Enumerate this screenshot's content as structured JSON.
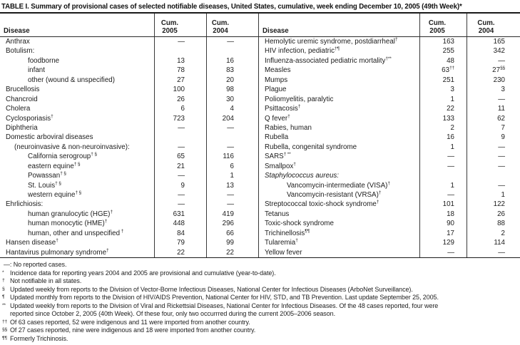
{
  "title": "TABLE I. Summary of provisional cases of selected notifiable diseases, United States, cumulative, week ending December 10, 2005 (49th Week)*",
  "header": {
    "disease_label": "Disease",
    "cum_label": "Cum.",
    "year_2005": "2005",
    "year_2004": "2004"
  },
  "table": {
    "left_rows": [
      {
        "d": "Anthrax",
        "i": 0,
        "a": "—",
        "b": "—"
      },
      {
        "d": "Botulism:",
        "i": 0,
        "a": "",
        "b": ""
      },
      {
        "d": "foodborne",
        "i": 2,
        "a": "13",
        "b": "16"
      },
      {
        "d": "infant",
        "i": 2,
        "a": "78",
        "b": "83"
      },
      {
        "d": "other (wound & unspecified)",
        "i": 2,
        "a": "27",
        "b": "20"
      },
      {
        "d": "Brucellosis",
        "i": 0,
        "a": "100",
        "b": "98"
      },
      {
        "d": "Chancroid",
        "i": 0,
        "a": "26",
        "b": "30"
      },
      {
        "d": "Cholera",
        "i": 0,
        "a": "6",
        "b": "4"
      },
      {
        "d": "Cyclosporiasis",
        "sup": "†",
        "i": 0,
        "a": "723",
        "b": "204"
      },
      {
        "d": "Diphtheria",
        "i": 0,
        "a": "—",
        "b": "—"
      },
      {
        "d": "Domestic arboviral diseases",
        "i": 0,
        "a": "",
        "b": ""
      },
      {
        "d": "(neuroinvasive & non-neuroinvasive):",
        "i": 1,
        "a": "—",
        "b": "—"
      },
      {
        "d": "California serogroup",
        "sup": "† §",
        "i": 2,
        "a": "65",
        "b": "116"
      },
      {
        "d": "eastern equine",
        "sup": "† §",
        "i": 2,
        "a": "21",
        "b": "6"
      },
      {
        "d": "Powassan",
        "sup": "† §",
        "i": 2,
        "a": "—",
        "b": "1"
      },
      {
        "d": "St. Louis",
        "sup": "† §",
        "i": 2,
        "a": "9",
        "b": "13"
      },
      {
        "d": "western equine",
        "sup": "† §",
        "i": 2,
        "a": "—",
        "b": "—"
      },
      {
        "d": "Ehrlichiosis:",
        "i": 0,
        "a": "—",
        "b": "—"
      },
      {
        "d": "human granulocytic (HGE)",
        "sup": "†",
        "i": 2,
        "a": "631",
        "b": "419"
      },
      {
        "d": "human monocytic (HME)",
        "sup": "†",
        "i": 2,
        "a": "448",
        "b": "296"
      },
      {
        "d": "human, other and unspecified",
        "sup": " †",
        "i": 2,
        "a": "84",
        "b": "66"
      },
      {
        "d": "Hansen disease",
        "sup": "†",
        "i": 0,
        "a": "79",
        "b": "99"
      },
      {
        "d": "Hantavirus pulmonary syndrome",
        "sup": "†",
        "i": 0,
        "a": "22",
        "b": "22"
      }
    ],
    "right_rows": [
      {
        "d": "Hemolytic uremic syndrome, postdiarrheal",
        "sup": "†",
        "i": 0,
        "a": "163",
        "b": "165"
      },
      {
        "d": "HIV infection, pediatric",
        "sup": "†¶",
        "i": 0,
        "a": "255",
        "b": "342"
      },
      {
        "d": "Influenza-associated pediatric mortality",
        "sup": "†**",
        "i": 0,
        "a": "48",
        "b": "—"
      },
      {
        "d": "Measles",
        "i": 0,
        "a": "63",
        "as": "††",
        "b": "27",
        "bs": "§§"
      },
      {
        "d": "Mumps",
        "i": 0,
        "a": "251",
        "b": "230"
      },
      {
        "d": "Plague",
        "i": 0,
        "a": "3",
        "b": "3"
      },
      {
        "d": "Poliomyelitis, paralytic",
        "i": 0,
        "a": "1",
        "b": "—"
      },
      {
        "d": "Psittacosis",
        "sup": "†",
        "i": 0,
        "a": "22",
        "b": "11"
      },
      {
        "d": "Q fever",
        "sup": "†",
        "i": 0,
        "a": "133",
        "b": "62"
      },
      {
        "d": "Rabies, human",
        "i": 0,
        "a": "2",
        "b": "7"
      },
      {
        "d": "Rubella",
        "i": 0,
        "a": "16",
        "b": "9"
      },
      {
        "d": "Rubella, congenital syndrome",
        "i": 0,
        "a": "1",
        "b": "—"
      },
      {
        "d": "SARS",
        "sup": "† **",
        "i": 0,
        "a": "—",
        "b": "—"
      },
      {
        "d": "Smallpox",
        "sup": "†",
        "i": 0,
        "a": "—",
        "b": "—"
      },
      {
        "d": "Staphylococcus aureus:",
        "it": true,
        "i": 0,
        "a": "",
        "b": ""
      },
      {
        "d": "Vancomycin-intermediate (VISA)",
        "sup": "†",
        "i": 2,
        "a": "1",
        "b": "—"
      },
      {
        "d": "Vancomycin-resistant (VRSA)",
        "sup": "†",
        "i": 2,
        "a": "—",
        "b": "1"
      },
      {
        "d": "Streptococcal toxic-shock syndrome",
        "sup": "†",
        "i": 0,
        "a": "101",
        "b": "122"
      },
      {
        "d": "Tetanus",
        "i": 0,
        "a": "18",
        "b": "26"
      },
      {
        "d": "Toxic-shock syndrome",
        "i": 0,
        "a": "90",
        "b": "88"
      },
      {
        "d": "Trichinellosis",
        "sup": "¶¶",
        "i": 0,
        "a": "17",
        "b": "2"
      },
      {
        "d": "Tularemia",
        "sup": "†",
        "i": 0,
        "a": "129",
        "b": "114"
      },
      {
        "d": "Yellow fever",
        "i": 0,
        "a": "—",
        "b": "—"
      }
    ]
  },
  "footnotes": [
    {
      "m": "—:",
      "t": "No reported cases.",
      "plain": true
    },
    {
      "m": "*",
      "t": "Incidence data for reporting years 2004 and 2005 are provisional and cumulative (year-to-date)."
    },
    {
      "m": "†",
      "t": "Not notifiable in all states."
    },
    {
      "m": "§",
      "t": "Updated weekly from reports to the Division of Vector-Borne Infectious Diseases, National Center for Infectious Diseases (ArboNet Surveillance)."
    },
    {
      "m": "¶",
      "t": "Updated monthly from reports to the Division of HIV/AIDS Prevention, National Center for HIV, STD, and TB Prevention. Last update September 25, 2005."
    },
    {
      "m": "**",
      "lines": [
        "Updated weekly from reports to the Division of Viral and Rickettsial Diseases, National Center for Infectious Diseases. Of the 48 cases reported, four were",
        "reported since October 2, 2005 (40th Week). Of these four, only two occurrred during the current 2005–2006 season."
      ]
    },
    {
      "m": "††",
      "t": "Of 63 cases reported, 52 were indigenous and 11 were imported from another country."
    },
    {
      "m": "§§",
      "t": "Of 27 cases reported, nine were indigenous and 18 were imported from another country."
    },
    {
      "m": "¶¶",
      "t": "Formerly Trichinosis."
    }
  ]
}
